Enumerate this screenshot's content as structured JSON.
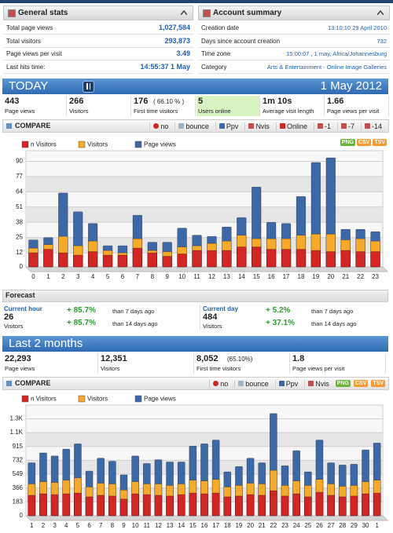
{
  "general_stats": {
    "title": "General stats",
    "rows": [
      {
        "label": "Total page views",
        "value": "1,027,584"
      },
      {
        "label": "Total visitors",
        "value": "293,873"
      },
      {
        "label": "Page views per visit",
        "value": "3.49"
      },
      {
        "label": "Last hits time:",
        "value": "14:55:37 1 May"
      }
    ]
  },
  "account_summary": {
    "title": "Account summary",
    "rows": [
      {
        "label": "Creation date",
        "value": "13:10:10 29 April 2010"
      },
      {
        "label": "Days since account creation",
        "value": "732"
      },
      {
        "label": "Time zone",
        "value": "15:00:07 , 1 may, Africa/Johannesburg"
      },
      {
        "label": "Category",
        "value": "Arts & Entertainment - Online Image Galleries"
      }
    ]
  },
  "today": {
    "title": "TODAY",
    "date": "1 May 2012",
    "stats": [
      {
        "value": "443",
        "label": "Page views"
      },
      {
        "value": "266",
        "label": "Visitors"
      },
      {
        "value": "176",
        "extra": "( 66.10 % )",
        "label": "First time visitors"
      },
      {
        "value": "5",
        "label": "Users online",
        "background": "#d9f2c2"
      },
      {
        "value": "1m 10s",
        "label": "Average visit length"
      },
      {
        "value": "1.66",
        "label": "Page views per visit"
      }
    ]
  },
  "compare_1": {
    "title": "COMPARE",
    "buttons": [
      "no",
      "bounce",
      "Ppv",
      "Nvis",
      "Online",
      "-1",
      "-7",
      "-14"
    ]
  },
  "exports": [
    "PNG",
    "CSV",
    "TSV"
  ],
  "forecast": {
    "title": "Forecast",
    "items": [
      {
        "title": "Current hour",
        "value": "26",
        "label": "Visitors",
        "changes": [
          {
            "value": "+ 85.7%",
            "text": "than 7 days ago"
          },
          {
            "value": "+ 85.7%",
            "text": "than 14 days ago"
          }
        ]
      },
      {
        "title": "Current day",
        "value": "484",
        "label": "Visitors",
        "changes": [
          {
            "value": "+ 5.2%",
            "text": "than 7 days ago"
          },
          {
            "value": "+ 37.1%",
            "text": "than 14 days ago"
          }
        ]
      }
    ]
  },
  "last_2_months": {
    "title": "Last 2 months",
    "stats": [
      {
        "value": "22,293",
        "label": "Page views"
      },
      {
        "value": "12,351",
        "label": "Visitors"
      },
      {
        "value": "8,052",
        "extra": "(65.10%)",
        "label": "First time visitors"
      },
      {
        "value": "1.8",
        "label": "Page views per visit"
      }
    ]
  },
  "compare_2": {
    "title": "COMPARE",
    "buttons": [
      "no",
      "bounce",
      "Ppv",
      "Nvis"
    ]
  },
  "chart_data": [
    {
      "type": "bar",
      "bar_mode": "overlay",
      "grid": true,
      "categories": [
        "0",
        "1",
        "2",
        "3",
        "4",
        "5",
        "6",
        "7",
        "8",
        "9",
        "10",
        "11",
        "12",
        "13",
        "14",
        "15",
        "16",
        "17",
        "18",
        "19",
        "20",
        "21",
        "22",
        "23"
      ],
      "series": [
        {
          "name": "n Visitors",
          "color": "#d42424",
          "values": [
            12,
            15,
            12,
            10,
            13,
            10,
            10,
            16,
            12,
            9,
            11,
            14,
            14,
            14,
            17,
            17,
            15,
            15,
            15,
            14,
            13,
            14,
            13,
            13
          ]
        },
        {
          "name": "Visitors",
          "color": "#f7a928",
          "values": [
            16,
            19,
            26,
            18,
            22,
            14,
            12,
            24,
            14,
            13,
            17,
            18,
            20,
            22,
            27,
            24,
            24,
            24,
            27,
            28,
            28,
            23,
            24,
            22
          ]
        },
        {
          "name": "Page views",
          "color": "#3d68a8",
          "values": [
            23,
            25,
            63,
            47,
            37,
            18,
            18,
            44,
            21,
            21,
            33,
            27,
            26,
            34,
            42,
            68,
            38,
            37,
            60,
            89,
            93,
            32,
            32,
            30
          ]
        }
      ],
      "ylim": [
        0,
        95
      ],
      "yticks": [
        0,
        12,
        25,
        38,
        51,
        64,
        77,
        90
      ]
    },
    {
      "type": "bar",
      "bar_mode": "overlay",
      "grid": true,
      "categories": [
        "1",
        "2",
        "3",
        "4",
        "5",
        "6",
        "7",
        "8",
        "9",
        "10",
        "11",
        "12",
        "13",
        "14",
        "15",
        "16",
        "17",
        "18",
        "19",
        "20",
        "21",
        "22",
        "23",
        "24",
        "25",
        "26",
        "27",
        "28",
        "29",
        "30",
        "1"
      ],
      "category_colors": [
        "#c00",
        "#333",
        "#333",
        "#333",
        "#333",
        "#333",
        "#333",
        "#c00",
        "#333",
        "#333",
        "#333",
        "#333",
        "#333",
        "#333",
        "#c00",
        "#333",
        "#333",
        "#333",
        "#333",
        "#333",
        "#333",
        "#c00",
        "#333",
        "#333",
        "#333",
        "#333",
        "#333",
        "#333",
        "#c00",
        "#333",
        "#c00"
      ],
      "series": [
        {
          "name": "n Visitors",
          "color": "#d42424",
          "values": [
            270,
            290,
            280,
            290,
            300,
            250,
            270,
            260,
            220,
            290,
            280,
            270,
            260,
            280,
            300,
            290,
            300,
            250,
            260,
            280,
            270,
            330,
            260,
            290,
            250,
            310,
            270,
            250,
            260,
            290,
            300
          ]
        },
        {
          "name": "Visitors",
          "color": "#f7a928",
          "values": [
            420,
            450,
            440,
            470,
            500,
            380,
            430,
            420,
            340,
            450,
            420,
            420,
            400,
            420,
            470,
            460,
            480,
            380,
            400,
            430,
            420,
            600,
            400,
            460,
            400,
            480,
            420,
            390,
            400,
            450,
            470
          ]
        },
        {
          "name": "Page views",
          "color": "#3d68a8",
          "values": [
            700,
            830,
            790,
            880,
            950,
            590,
            760,
            720,
            540,
            790,
            690,
            740,
            710,
            710,
            920,
            950,
            1000,
            580,
            650,
            760,
            700,
            1350,
            660,
            860,
            580,
            1000,
            700,
            670,
            680,
            870,
            960
          ]
        }
      ],
      "ylim": [
        0,
        1400
      ],
      "yticks": [
        0,
        183,
        366,
        549,
        732,
        915,
        {
          "value": 1098,
          "label": "1.1K"
        },
        {
          "value": 1281,
          "label": "1.3K"
        }
      ]
    }
  ]
}
